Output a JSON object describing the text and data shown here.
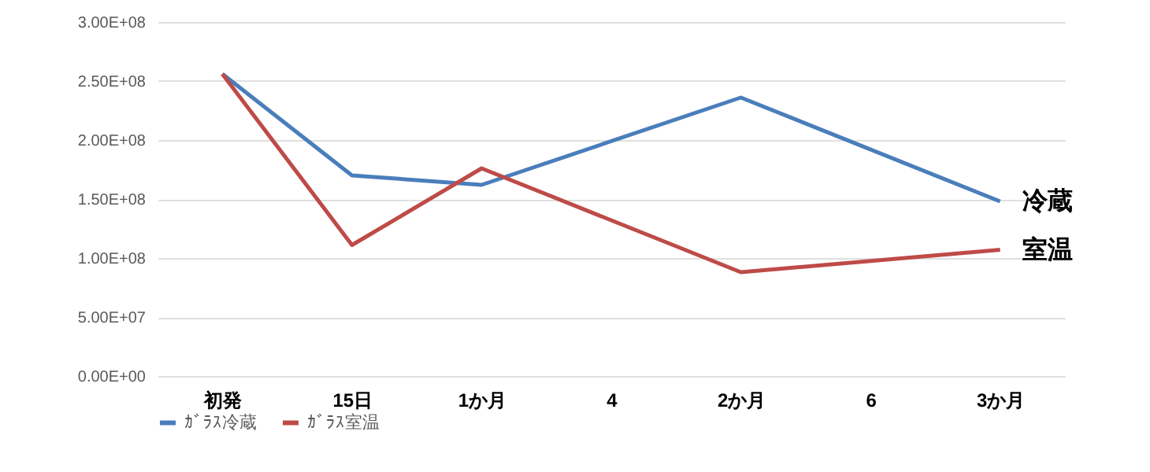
{
  "chart_data": {
    "type": "line",
    "categories": [
      "初発",
      "15日",
      "1か月",
      "4",
      "2か月",
      "6",
      "3か月"
    ],
    "series": [
      {
        "name": "ｶﾞﾗｽ冷蔵",
        "color": "#4a7ebb",
        "values": [
          256000000,
          170000000,
          162000000,
          null,
          236000000,
          null,
          148000000
        ]
      },
      {
        "name": "ｶﾞﾗｽ室温",
        "color": "#be4b48",
        "values": [
          256000000,
          111000000,
          176000000,
          null,
          88000000,
          null,
          107000000
        ]
      }
    ],
    "ylim": [
      0,
      300000000
    ],
    "yticks": [
      {
        "value": 0,
        "label": "0.00E+00"
      },
      {
        "value": 50000000,
        "label": "5.00E+07"
      },
      {
        "value": 100000000,
        "label": "1.00E+08"
      },
      {
        "value": 150000000,
        "label": "1.50E+08"
      },
      {
        "value": 200000000,
        "label": "2.00E+08"
      },
      {
        "value": 250000000,
        "label": "2.50E+08"
      },
      {
        "value": 300000000,
        "label": "3.00E+08"
      }
    ],
    "annotations": [
      {
        "text": "冷蔵",
        "x": "3か月",
        "y": 148000000
      },
      {
        "text": "室温",
        "x": "3か月",
        "y": 107000000
      }
    ],
    "grid": "y",
    "legend": "bottom",
    "marker": "none",
    "line_style": "solid"
  }
}
